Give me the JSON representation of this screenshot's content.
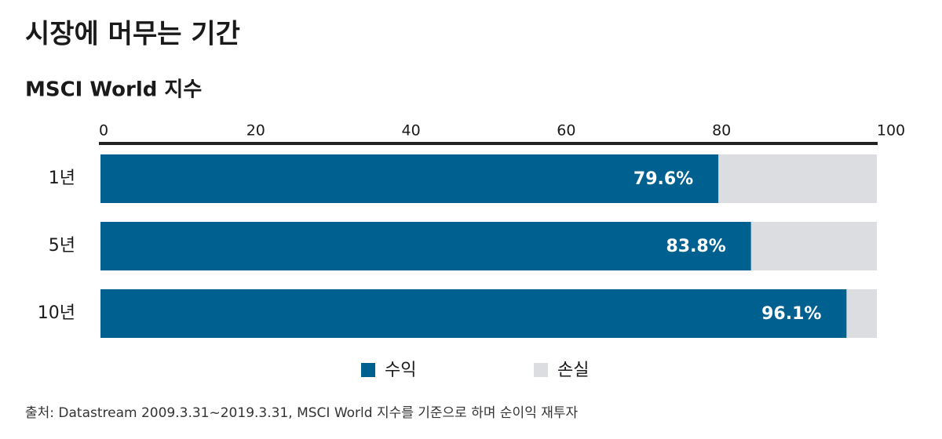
{
  "chart_data": {
    "type": "bar",
    "orientation": "horizontal",
    "stacked": true,
    "title": "시장에 머무는 기간",
    "subtitle": "MSCI World 지수",
    "categories": [
      "1년",
      "5년",
      "10년"
    ],
    "series": [
      {
        "name": "수익",
        "color": "#00608f",
        "values": [
          79.6,
          83.8,
          96.1
        ],
        "value_labels": [
          "79.6%",
          "83.8%",
          "96.1%"
        ]
      },
      {
        "name": "손실",
        "color": "#dcdde0",
        "values": [
          20.4,
          16.2,
          3.9
        ]
      }
    ],
    "xlim": [
      0,
      100
    ],
    "xticks": [
      0,
      20,
      40,
      60,
      80,
      100
    ],
    "source": "출처: Datastream 2009.3.31~2019.3.31, MSCI World 지수를 기준으로 하며 순이익 재투자"
  }
}
